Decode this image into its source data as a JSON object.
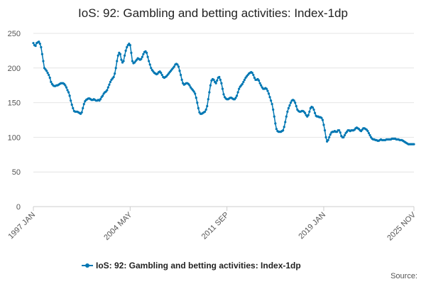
{
  "chart_data": {
    "type": "line",
    "title": "IoS: 92: Gambling and betting activities: Index-1dp",
    "source_label": "Source:",
    "categories": [
      "1997 JAN",
      null,
      null,
      null,
      null,
      null,
      null,
      null,
      null,
      null,
      null,
      null,
      null,
      null,
      null,
      null,
      null,
      null,
      null,
      null,
      null,
      null,
      null,
      null,
      null,
      null,
      null,
      null,
      null,
      null,
      null,
      null,
      null,
      null,
      null,
      null,
      null,
      null,
      null,
      null,
      null,
      null,
      null,
      null,
      null,
      null,
      null,
      null,
      null,
      null,
      null,
      null,
      null,
      null,
      null,
      null,
      null,
      null,
      null,
      null,
      null,
      null,
      null,
      null,
      null,
      null,
      null,
      null,
      null,
      null,
      null,
      null,
      null,
      null,
      null,
      null,
      null,
      null,
      null,
      null,
      null,
      null,
      null,
      null,
      null,
      null,
      null,
      null,
      "2004 MAY",
      null,
      null,
      null,
      null,
      null,
      null,
      null,
      null,
      null,
      null,
      null,
      null,
      null,
      null,
      null,
      null,
      null,
      null,
      null,
      null,
      null,
      null,
      null,
      null,
      null,
      null,
      null,
      null,
      null,
      null,
      null,
      null,
      null,
      null,
      null,
      null,
      null,
      null,
      null,
      null,
      null,
      null,
      null,
      null,
      null,
      null,
      null,
      null,
      null,
      null,
      null,
      null,
      null,
      null,
      null,
      null,
      null,
      null,
      null,
      null,
      null,
      null,
      null,
      null,
      null,
      null,
      null,
      null,
      null,
      null,
      null,
      null,
      null,
      null,
      null,
      null,
      null,
      null,
      null,
      null,
      null,
      null,
      null,
      null,
      null,
      null,
      null,
      "2011 SEP",
      null,
      null,
      null,
      null,
      null,
      null,
      null,
      null,
      null,
      null,
      null,
      null,
      null,
      null,
      null,
      null,
      null,
      null,
      null,
      null,
      null,
      null,
      null,
      null,
      null,
      null,
      null,
      null,
      null,
      null,
      null,
      null,
      null,
      null,
      null,
      null,
      null,
      null,
      null,
      null,
      null,
      null,
      null,
      null,
      null,
      null,
      null,
      null,
      null,
      null,
      null,
      null,
      null,
      null,
      null,
      null,
      null,
      null,
      null,
      null,
      null,
      null,
      null,
      null,
      null,
      null,
      null,
      null,
      null,
      null,
      null,
      null,
      null,
      null,
      null,
      null,
      null,
      null,
      null,
      null,
      null,
      null,
      null,
      null,
      null,
      null,
      null,
      "2019 JAN",
      null,
      null,
      null,
      null,
      null,
      null,
      null,
      null,
      null,
      null,
      null,
      null,
      null,
      null,
      null,
      null,
      null,
      null,
      null,
      null,
      null,
      null,
      null,
      null,
      null,
      null,
      null,
      null,
      null,
      null,
      null,
      null,
      null,
      null,
      null,
      null,
      null,
      null,
      null,
      null,
      null,
      null,
      null,
      null,
      null,
      null,
      null,
      null,
      null,
      null,
      null,
      null,
      null,
      null,
      null,
      null,
      null,
      null,
      null,
      null,
      null,
      null,
      null,
      null,
      null,
      null,
      null,
      null,
      null,
      null,
      null,
      null,
      null,
      null,
      null,
      null,
      null,
      null,
      null,
      null,
      null,
      "2025 NOV"
    ],
    "series": [
      {
        "name": "IoS: 92: Gambling and betting activities: Index-1dp",
        "color": "#0077b3",
        "values": [
          236,
          233,
          232,
          236,
          237,
          238,
          235,
          230,
          220,
          210,
          200,
          198,
          196,
          193,
          190,
          186,
          180,
          177,
          175,
          174,
          174,
          175,
          175,
          176,
          177,
          178,
          178,
          178,
          177,
          175,
          172,
          168,
          165,
          160,
          153,
          147,
          142,
          138,
          137,
          137,
          137,
          136,
          135,
          134,
          136,
          142,
          148,
          152,
          154,
          155,
          156,
          156,
          155,
          154,
          154,
          155,
          154,
          153,
          153,
          154,
          153,
          155,
          158,
          160,
          163,
          165,
          166,
          168,
          172,
          176,
          180,
          183,
          185,
          187,
          192,
          200,
          210,
          218,
          222,
          220,
          212,
          208,
          210,
          218,
          225,
          230,
          233,
          235,
          233,
          222,
          210,
          207,
          208,
          210,
          212,
          214,
          213,
          212,
          213,
          216,
          220,
          223,
          224,
          222,
          216,
          210,
          205,
          200,
          197,
          195,
          193,
          192,
          191,
          192,
          194,
          195,
          193,
          190,
          187,
          186,
          187,
          188,
          190,
          192,
          194,
          196,
          198,
          200,
          202,
          205,
          206,
          205,
          202,
          196,
          190,
          183,
          178,
          176,
          177,
          178,
          178,
          177,
          175,
          172,
          170,
          168,
          166,
          163,
          157,
          150,
          142,
          136,
          134,
          134,
          135,
          136,
          137,
          140,
          145,
          155,
          165,
          175,
          182,
          184,
          183,
          180,
          178,
          182,
          186,
          187,
          183,
          178,
          170,
          162,
          158,
          156,
          155,
          155,
          156,
          157,
          157,
          156,
          155,
          155,
          157,
          160,
          165,
          170,
          173,
          175,
          177,
          180,
          183,
          186,
          188,
          190,
          192,
          193,
          194,
          193,
          190,
          186,
          183,
          183,
          184,
          182,
          178,
          175,
          172,
          170,
          170,
          171,
          170,
          167,
          163,
          158,
          153,
          148,
          140,
          130,
          120,
          112,
          109,
          108,
          108,
          108,
          109,
          110,
          115,
          122,
          130,
          137,
          142,
          146,
          150,
          153,
          154,
          153,
          150,
          145,
          140,
          138,
          137,
          137,
          138,
          138,
          137,
          135,
          132,
          130,
          132,
          137,
          142,
          144,
          143,
          140,
          135,
          131,
          130,
          130,
          129,
          129,
          128,
          125,
          118,
          110,
          100,
          94,
          96,
          100,
          104,
          107,
          108,
          108,
          109,
          108,
          108,
          110,
          110,
          107,
          102,
          100,
          100,
          103,
          106,
          108,
          110,
          110,
          109,
          110,
          110,
          110,
          111,
          113,
          114,
          113,
          112,
          110,
          109,
          111,
          113,
          113,
          112,
          111,
          109,
          106,
          103,
          100,
          98,
          97,
          97,
          96,
          96,
          95,
          95,
          96,
          97,
          96,
          96,
          96,
          96,
          97,
          97,
          97,
          97,
          97,
          98,
          98,
          98,
          98,
          97,
          97,
          97,
          96,
          96,
          96,
          95,
          94,
          93,
          92,
          91,
          90,
          90,
          90,
          90,
          90,
          90
        ]
      }
    ],
    "ylim": [
      0,
      250
    ],
    "yticks": [
      0,
      50,
      100,
      150,
      200,
      250
    ],
    "grid": true
  }
}
